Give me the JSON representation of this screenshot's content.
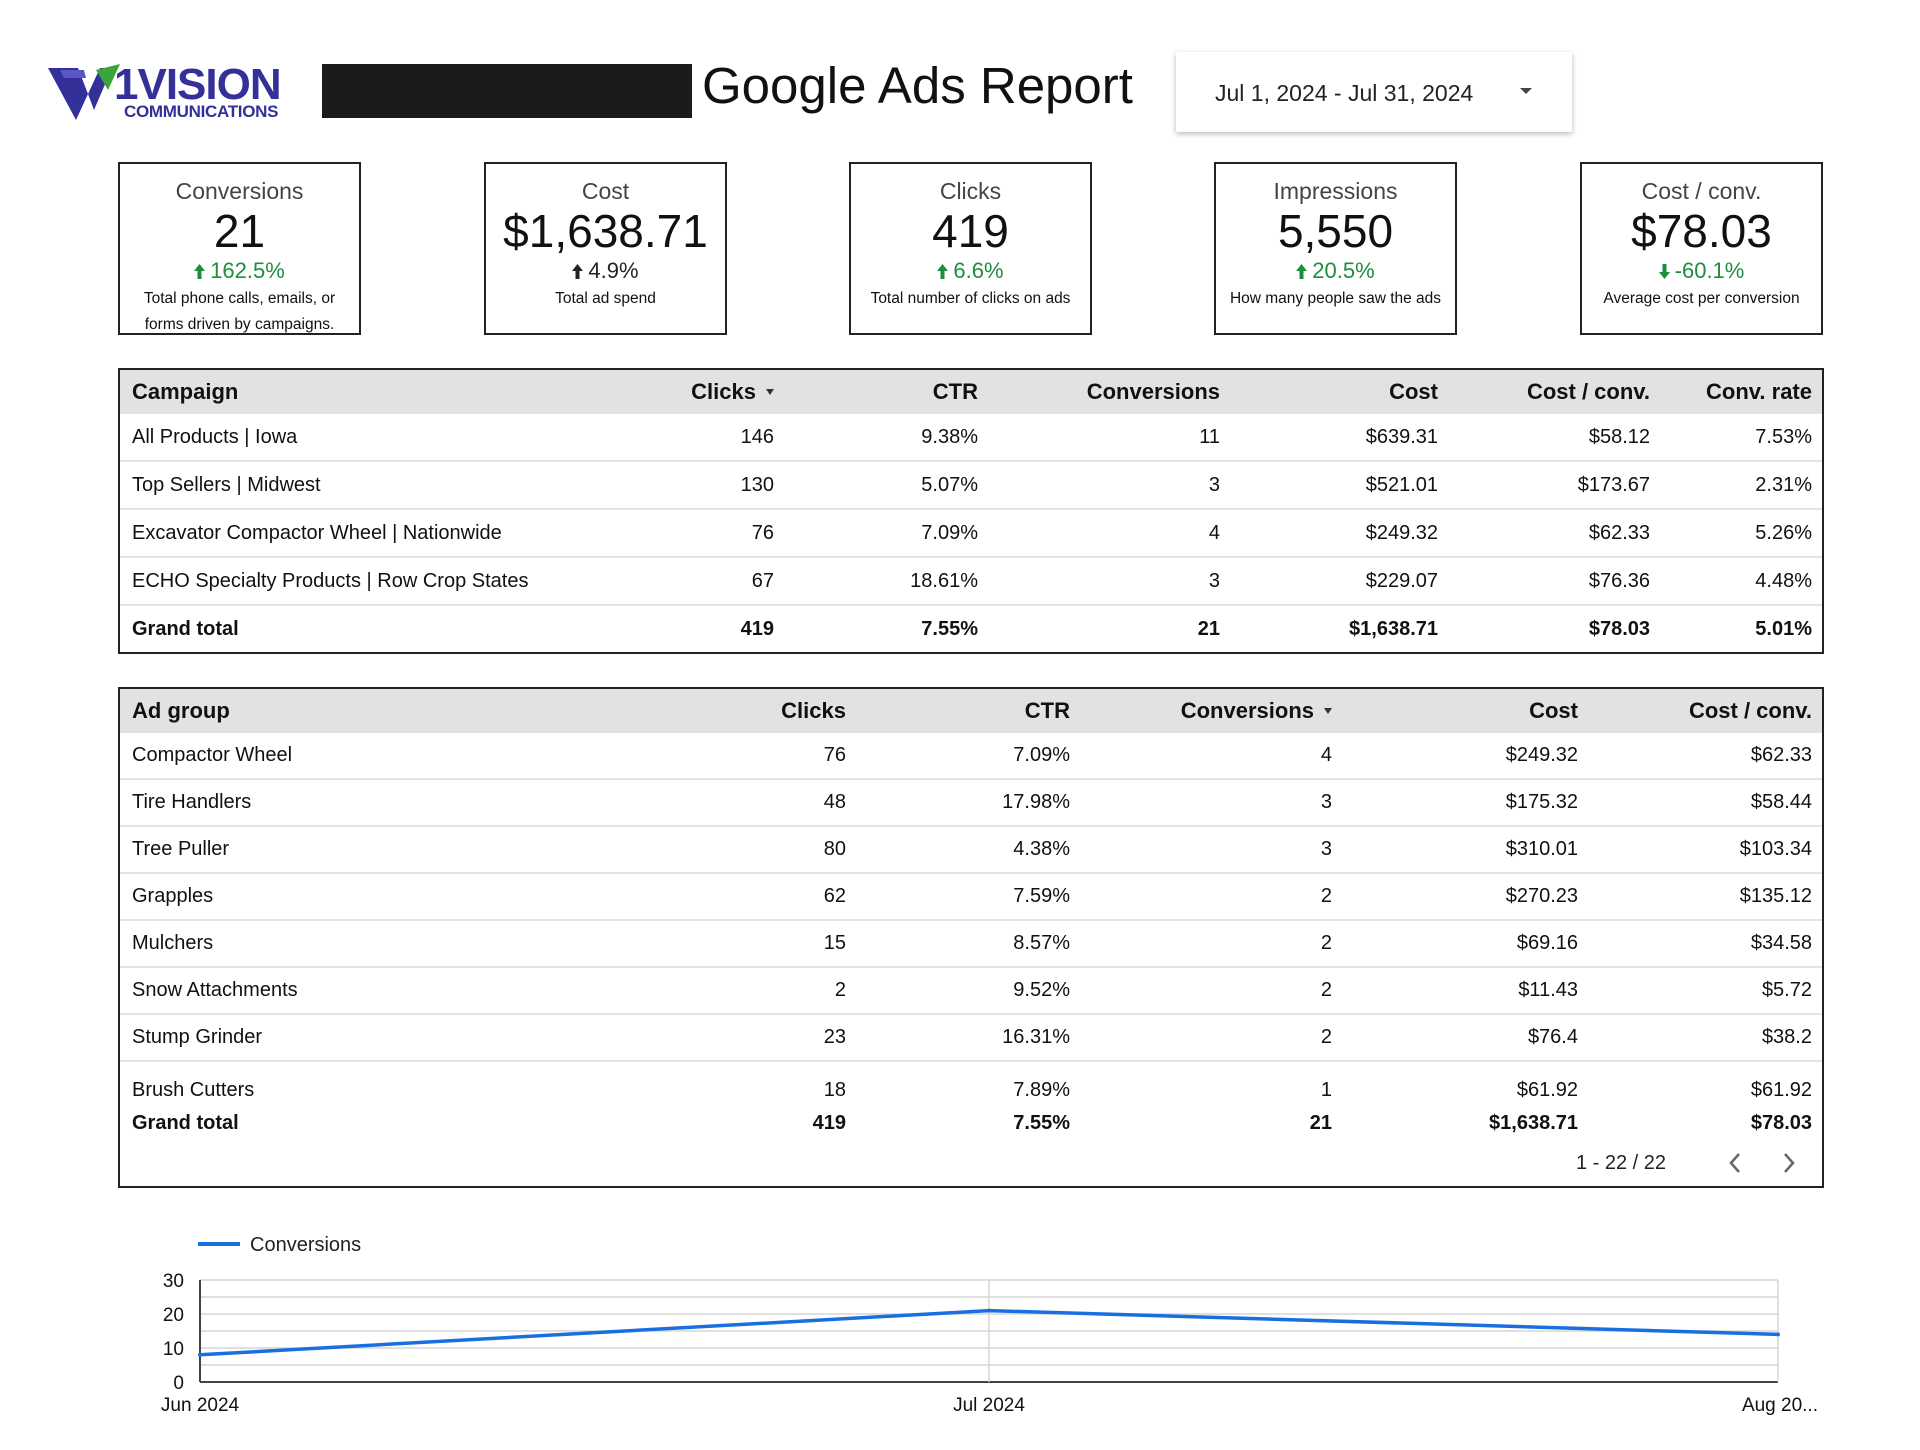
{
  "header": {
    "logo_word": "1VISION",
    "logo_sub": "COMMUNICATIONS",
    "title": "Google Ads Report",
    "date_range": "Jul 1, 2024 - Jul 31, 2024"
  },
  "colors": {
    "brand": "#34309a",
    "positive": "#1e8e3e",
    "line": "#1a6fe0",
    "header_bg": "#e2e2e2"
  },
  "scorecards": [
    {
      "label": "Conversions",
      "value": "21",
      "delta": "162.5%",
      "direction": "up",
      "positive": true,
      "description": "Total phone calls, emails, or forms driven by campaigns."
    },
    {
      "label": "Cost",
      "value": "$1,638.71",
      "delta": "4.9%",
      "direction": "up",
      "positive": false,
      "description": "Total ad spend"
    },
    {
      "label": "Clicks",
      "value": "419",
      "delta": "6.6%",
      "direction": "up",
      "positive": true,
      "description": "Total number of clicks on ads"
    },
    {
      "label": "Impressions",
      "value": "5,550",
      "delta": "20.5%",
      "direction": "up",
      "positive": true,
      "description": "How many people saw the ads"
    },
    {
      "label": "Cost / conv.",
      "value": "$78.03",
      "delta": "-60.1%",
      "direction": "down",
      "positive": true,
      "description": "Average cost per conversion"
    }
  ],
  "campaign_table": {
    "columns": [
      "Campaign",
      "Clicks",
      "CTR",
      "Conversions",
      "Cost",
      "Cost / conv.",
      "Conv. rate"
    ],
    "sorted_column": "Clicks",
    "rows": [
      [
        "All Products | Iowa",
        "146",
        "9.38%",
        "11",
        "$639.31",
        "$58.12",
        "7.53%"
      ],
      [
        "Top Sellers | Midwest",
        "130",
        "5.07%",
        "3",
        "$521.01",
        "$173.67",
        "2.31%"
      ],
      [
        "Excavator Compactor Wheel | Nationwide",
        "76",
        "7.09%",
        "4",
        "$249.32",
        "$62.33",
        "5.26%"
      ],
      [
        "ECHO Specialty Products | Row Crop States",
        "67",
        "18.61%",
        "3",
        "$229.07",
        "$76.36",
        "4.48%"
      ]
    ],
    "total": [
      "Grand total",
      "419",
      "7.55%",
      "21",
      "$1,638.71",
      "$78.03",
      "5.01%"
    ]
  },
  "adgroup_table": {
    "columns": [
      "Ad group",
      "Clicks",
      "CTR",
      "Conversions",
      "Cost",
      "Cost / conv."
    ],
    "sorted_column": "Conversions",
    "rows": [
      [
        "Compactor Wheel",
        "76",
        "7.09%",
        "4",
        "$249.32",
        "$62.33"
      ],
      [
        "Tire Handlers",
        "48",
        "17.98%",
        "3",
        "$175.32",
        "$58.44"
      ],
      [
        "Tree Puller",
        "80",
        "4.38%",
        "3",
        "$310.01",
        "$103.34"
      ],
      [
        "Grapples",
        "62",
        "7.59%",
        "2",
        "$270.23",
        "$135.12"
      ],
      [
        "Mulchers",
        "15",
        "8.57%",
        "2",
        "$69.16",
        "$34.58"
      ],
      [
        "Snow Attachments",
        "2",
        "9.52%",
        "2",
        "$11.43",
        "$5.72"
      ],
      [
        "Stump Grinder",
        "23",
        "16.31%",
        "2",
        "$76.4",
        "$38.2"
      ],
      [
        "Brush Cutters",
        "18",
        "7.89%",
        "1",
        "$61.92",
        "$61.92"
      ]
    ],
    "total": [
      "Grand total",
      "419",
      "7.55%",
      "21",
      "$1,638.71",
      "$78.03"
    ],
    "pagination": "1 - 22 / 22"
  },
  "chart_data": {
    "type": "line",
    "x": [
      "Jun 2024",
      "Jul 2024",
      "Aug 20..."
    ],
    "series": [
      {
        "name": "Conversions",
        "values": [
          8,
          21,
          14
        ]
      }
    ],
    "ylim": [
      0,
      30
    ],
    "yticks": [
      0,
      10,
      20,
      30
    ],
    "grid": true,
    "legend": "top-left"
  }
}
